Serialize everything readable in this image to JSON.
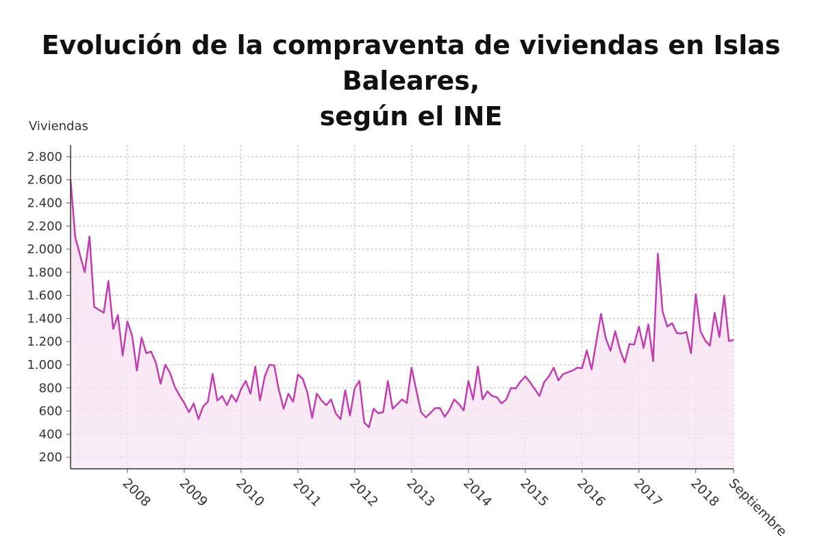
{
  "chart_data": {
    "type": "area",
    "title_line1": "Evolución de la compraventa de viviendas en Islas Baleares,",
    "title_line2": "según el INE",
    "ylabel": "Viviendas",
    "xlabel": "",
    "ylim": [
      100,
      2900
    ],
    "y_ticks": [
      200,
      400,
      600,
      800,
      1000,
      1200,
      1400,
      1600,
      1800,
      2000,
      2200,
      2400,
      2600,
      2800
    ],
    "y_tick_labels": [
      "200",
      "400",
      "600",
      "800",
      "1.000",
      "1.200",
      "1.400",
      "1.600",
      "1.800",
      "2.000",
      "2.200",
      "2.400",
      "2.600",
      "2.800"
    ],
    "x_start": "2007-01",
    "x_end": "2018-09",
    "x_tick_months": [
      "2008-01",
      "2009-01",
      "2010-01",
      "2011-01",
      "2012-01",
      "2013-01",
      "2014-01",
      "2015-01",
      "2016-01",
      "2017-01",
      "2018-01",
      "2018-09"
    ],
    "x_tick_labels": [
      "2008",
      "2009",
      "2010",
      "2011",
      "2012",
      "2013",
      "2014",
      "2015",
      "2016",
      "2017",
      "2018",
      "Septiembre"
    ],
    "grid": true,
    "legend": "none",
    "line_color": "#c23bb0",
    "fill_color": "#f7e4f3",
    "series": [
      {
        "values": [
          2600,
          2100,
          1950,
          1800,
          2110,
          1500,
          1475,
          1450,
          1725,
          1310,
          1430,
          1080,
          1375,
          1250,
          950,
          1235,
          1100,
          1115,
          1020,
          835,
          1000,
          930,
          810,
          735,
          670,
          590,
          665,
          530,
          640,
          680,
          920,
          690,
          730,
          650,
          740,
          680,
          790,
          860,
          750,
          985,
          690,
          900,
          1000,
          995,
          780,
          620,
          750,
          680,
          915,
          880,
          760,
          540,
          750,
          690,
          650,
          700,
          580,
          530,
          780,
          560,
          800,
          860,
          500,
          460,
          620,
          580,
          590,
          860,
          620,
          660,
          700,
          670,
          975,
          780,
          590,
          545,
          585,
          625,
          625,
          550,
          610,
          700,
          660,
          605,
          860,
          700,
          985,
          700,
          770,
          730,
          720,
          665,
          700,
          800,
          795,
          855,
          900,
          850,
          790,
          730,
          850,
          900,
          975,
          865,
          920,
          935,
          950,
          975,
          970,
          1125,
          960,
          1200,
          1440,
          1230,
          1120,
          1290,
          1130,
          1020,
          1180,
          1175,
          1330,
          1145,
          1350,
          1030,
          1960,
          1460,
          1330,
          1360,
          1275,
          1270,
          1285,
          1100,
          1610,
          1290,
          1210,
          1165,
          1450,
          1240,
          1600,
          1205,
          1215
        ]
      }
    ]
  }
}
